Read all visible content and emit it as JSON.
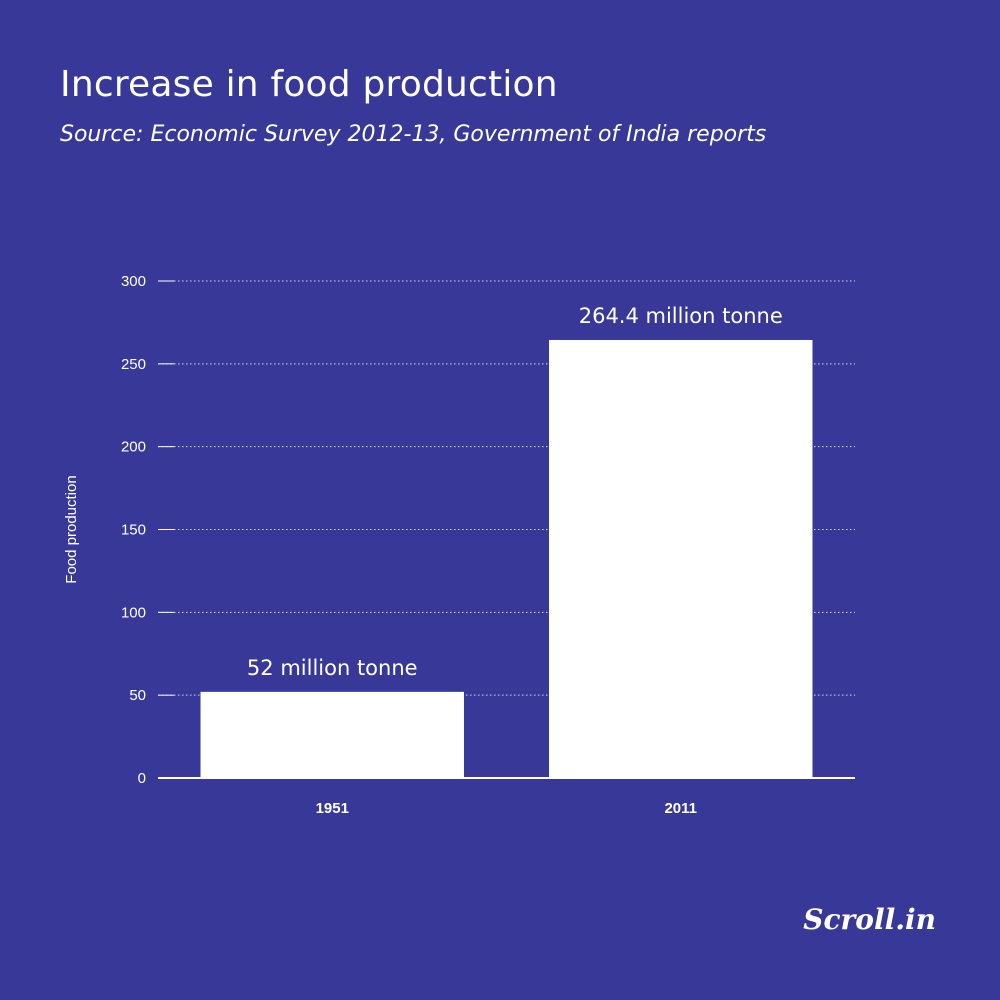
{
  "chart_data": {
    "type": "bar",
    "title": "Increase in food production",
    "subtitle": "Source: Economic Survey 2012-13, Government of India reports",
    "ylabel": "Food production",
    "xlabel": "",
    "categories": [
      "1951",
      "2011"
    ],
    "values": [
      52,
      264.4
    ],
    "data_labels": [
      "52 million tonne",
      "264.4 million tonne"
    ],
    "ylim": [
      0,
      300
    ],
    "yticks": [
      0,
      50,
      100,
      150,
      200,
      250,
      300
    ],
    "grid": true,
    "legend": "none",
    "colors": {
      "background": "#383898",
      "bar": "#ffffff",
      "text": "#ffffff"
    }
  },
  "brand": {
    "logo_text": "Scroll.in"
  }
}
